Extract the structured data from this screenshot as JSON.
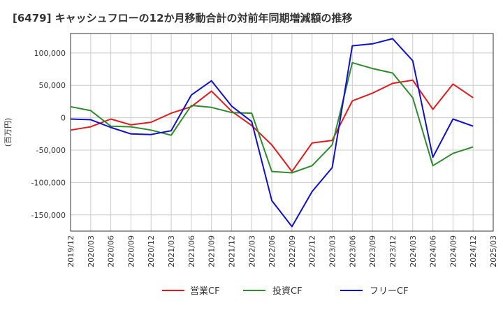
{
  "chart_data": {
    "type": "line",
    "title": "[6479]  キャッシュフローの12か月移動合計の対前年同期増減額の推移",
    "ylabel": "(百万円)",
    "xlabel": "",
    "ylim": [
      -175000,
      130000
    ],
    "yticks": [
      100000,
      50000,
      0,
      -50000,
      -100000,
      -150000
    ],
    "ytick_labels": [
      "100,000",
      "50,000",
      "0",
      "-50,000",
      "-100,000",
      "-150,000"
    ],
    "x": [
      "2019/12",
      "2020/03",
      "2020/06",
      "2020/09",
      "2020/12",
      "2021/03",
      "2021/06",
      "2021/09",
      "2021/12",
      "2022/03",
      "2022/06",
      "2022/09",
      "2022/12",
      "2023/03",
      "2023/06",
      "2023/09",
      "2023/12",
      "2024/03",
      "2024/06",
      "2024/09",
      "2024/12",
      "2025/03"
    ],
    "grid": true,
    "legend_position": "bottom",
    "series": [
      {
        "name": "営業CF",
        "color": "#e31a1c",
        "values": [
          -19000,
          -14000,
          -2000,
          -11000,
          -7000,
          7000,
          17000,
          41000,
          10000,
          -12000,
          -42000,
          -83000,
          -39000,
          -35000,
          26000,
          38000,
          53000,
          58000,
          13000,
          52000,
          31000,
          null
        ]
      },
      {
        "name": "投資CF",
        "color": "#2e8b2e",
        "values": [
          17000,
          11000,
          -13000,
          -14000,
          -19000,
          -27000,
          19000,
          16000,
          8000,
          7000,
          -83000,
          -85000,
          -74000,
          -42000,
          85000,
          76000,
          69000,
          31000,
          -74000,
          -55000,
          -45000,
          null
        ]
      },
      {
        "name": "フリーCF",
        "color": "#1010cc",
        "values": [
          -2000,
          -3000,
          -15000,
          -25000,
          -26000,
          -20000,
          35000,
          57000,
          18000,
          -6000,
          -128000,
          -168000,
          -114000,
          -77000,
          111000,
          114000,
          122000,
          88000,
          -61000,
          -2000,
          -13000,
          null
        ]
      }
    ]
  }
}
